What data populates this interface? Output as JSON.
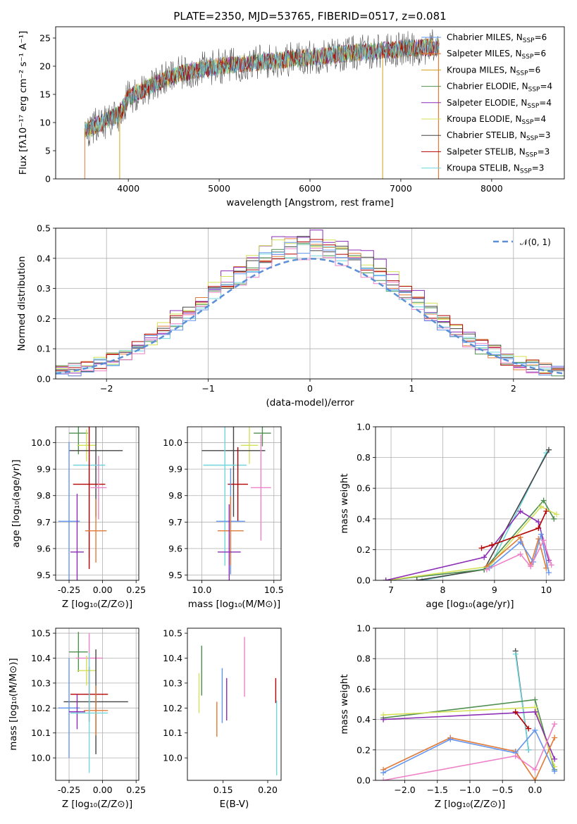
{
  "chart_data": [
    {
      "id": "spectrum",
      "type": "line",
      "title": "PLATE=2350, MJD=53765, FIBERID=0517, z=0.081",
      "xlabel": "wavelength [Angstrom, rest frame]",
      "ylabel": "Flux [fλ10⁻¹⁷ erg cm⁻² s⁻¹ A⁻¹]",
      "xlim": [
        3200,
        8800
      ],
      "ylim": [
        0,
        27
      ],
      "xticks": [
        "4000",
        "5000",
        "6000",
        "7000",
        "8000"
      ],
      "yticks": [
        "0",
        "5",
        "10",
        "15",
        "20",
        "25"
      ],
      "x_start": 3520,
      "x_end": 7420,
      "continuum": {
        "x": [
          3520,
          3900,
          4000,
          4300,
          4600,
          5000,
          5500,
          6000,
          6500,
          7000,
          7420
        ],
        "y": [
          8.5,
          11.5,
          14.5,
          17.0,
          18.8,
          20.0,
          20.8,
          21.6,
          22.4,
          23.0,
          23.5
        ]
      },
      "legend": [
        {
          "label": "Chabrier MILES, N",
          "sub": "SSP",
          "suffix": "=6",
          "color": "#6495ed"
        },
        {
          "label": "Salpeter MILES, N",
          "sub": "SSP",
          "suffix": "=6",
          "color": "#e07b39"
        },
        {
          "label": "Kroupa MILES, N",
          "sub": "SSP",
          "suffix": "=6",
          "color": "#d4a017"
        },
        {
          "label": "Chabrier ELODIE, N",
          "sub": "SSP",
          "suffix": "=4",
          "color": "#4f8f4f"
        },
        {
          "label": "Salpeter ELODIE, N",
          "sub": "SSP",
          "suffix": "=4",
          "color": "#8b2db5"
        },
        {
          "label": "Kroupa ELODIE, N",
          "sub": "SSP",
          "suffix": "=4",
          "color": "#d4e157"
        },
        {
          "label": "Chabrier STELIB, N",
          "sub": "SSP",
          "suffix": "=3",
          "color": "#444444"
        },
        {
          "label": "Salpeter STELIB, N",
          "sub": "SSP",
          "suffix": "=3",
          "color": "#b30000"
        },
        {
          "label": "Kroupa STELIB, N",
          "sub": "SSP",
          "suffix": "=3",
          "color": "#70d6dc"
        }
      ]
    },
    {
      "id": "residuals",
      "type": "histogram",
      "xlabel": "(data-model)/error",
      "ylabel": "Normed distribution",
      "xlim": [
        -2.5,
        2.5
      ],
      "ylim": [
        0,
        0.5
      ],
      "xticks": [
        "−2",
        "−1",
        "0",
        "1",
        "2"
      ],
      "yticks": [
        "0.0",
        "0.1",
        "0.2",
        "0.3",
        "0.4",
        "0.5"
      ],
      "gaussian_label": "𝒩(0, 1)",
      "bins": [
        -2.5,
        2.5,
        40
      ],
      "base_colors": [
        "#4f8f4f",
        "#e07b39",
        "#8b2db5",
        "#d4e157",
        "#444444",
        "#b30000",
        "#70d6dc",
        "#ee82c8",
        "#6495ed"
      ],
      "series_peaks": [
        0.43,
        0.45,
        0.48,
        0.46,
        0.45,
        0.44,
        0.43,
        0.42,
        0.44
      ]
    },
    {
      "id": "z-age",
      "type": "errorbar",
      "xlabel": "Z [log₁₀(Z/Z⊙)]",
      "ylabel": "age  [log₁₀(age/yr)]",
      "xlim": [
        -0.35,
        0.27
      ],
      "ylim": [
        9.48,
        10.06
      ],
      "xticks": [
        -0.25,
        0.0,
        0.25
      ],
      "yticks": [
        9.5,
        9.6,
        9.7,
        9.8,
        9.9,
        10.0
      ],
      "points": [
        {
          "x": -0.18,
          "y": 10.036,
          "xerr": 0.07,
          "yerr": 0.08,
          "color": "#4f8f4f"
        },
        {
          "x": -0.12,
          "y": 9.99,
          "xerr": 0.07,
          "yerr": 0.06,
          "color": "#d4e157"
        },
        {
          "x": -0.05,
          "y": 9.97,
          "xerr": 0.2,
          "yerr": 0.25,
          "color": "#444444"
        },
        {
          "x": -0.1,
          "y": 9.915,
          "xerr": 0.12,
          "yerr": 0.35,
          "color": "#70d6dc"
        },
        {
          "x": -0.1,
          "y": 9.843,
          "xerr": 0.12,
          "yerr": 0.32,
          "color": "#b30000"
        },
        {
          "x": -0.03,
          "y": 9.83,
          "xerr": 0.06,
          "yerr": 0.12,
          "color": "#ee82c8"
        },
        {
          "x": -0.25,
          "y": 9.703,
          "xerr": 0.08,
          "yerr": 0.3,
          "color": "#6495ed"
        },
        {
          "x": -0.05,
          "y": 9.667,
          "xerr": 0.08,
          "yerr": 0.12,
          "color": "#e07b39"
        },
        {
          "x": -0.19,
          "y": 9.587,
          "xerr": 0.05,
          "yerr": 0.22,
          "color": "#8b2db5"
        }
      ]
    },
    {
      "id": "mass-age",
      "type": "errorbar",
      "xlabel": "mass [log₁₀(M/M⊙)]",
      "ylabel": "",
      "xlim": [
        9.9,
        10.55
      ],
      "ylim": [
        9.48,
        10.06
      ],
      "xticks": [
        10.0,
        10.5
      ],
      "yticks": [
        9.5,
        9.6,
        9.7,
        9.8,
        9.9,
        10.0
      ],
      "points": [
        {
          "x": 10.42,
          "y": 10.036,
          "xerr": 0.06,
          "yerr": 0.05,
          "color": "#4f8f4f"
        },
        {
          "x": 10.33,
          "y": 9.99,
          "xerr": 0.06,
          "yerr": 0.07,
          "color": "#d4e157"
        },
        {
          "x": 10.22,
          "y": 9.97,
          "xerr": 0.22,
          "yerr": 0.25,
          "color": "#444444"
        },
        {
          "x": 10.16,
          "y": 9.915,
          "xerr": 0.15,
          "yerr": 0.38,
          "color": "#70d6dc"
        },
        {
          "x": 10.25,
          "y": 9.843,
          "xerr": 0.07,
          "yerr": 0.14,
          "color": "#b30000"
        },
        {
          "x": 10.41,
          "y": 9.83,
          "xerr": 0.07,
          "yerr": 0.2,
          "color": "#ee82c8"
        },
        {
          "x": 10.2,
          "y": 9.703,
          "xerr": 0.1,
          "yerr": 0.2,
          "color": "#6495ed"
        },
        {
          "x": 10.2,
          "y": 9.667,
          "xerr": 0.09,
          "yerr": 0.13,
          "color": "#e07b39"
        },
        {
          "x": 10.19,
          "y": 9.587,
          "xerr": 0.08,
          "yerr": 0.18,
          "color": "#8b2db5"
        }
      ]
    },
    {
      "id": "age-weight",
      "type": "line",
      "xlabel": "age  [log₁₀(age/yr)]",
      "ylabel": "mass weight",
      "xlim": [
        6.7,
        10.35
      ],
      "ylim": [
        0,
        1.0
      ],
      "xticks": [
        7,
        8,
        9,
        10
      ],
      "yticks": [
        0.0,
        0.2,
        0.4,
        0.6,
        0.8,
        1.0
      ],
      "series": [
        {
          "color": "#70d6dc",
          "x": [
            7.6,
            8.9,
            10.0
          ],
          "y": [
            0.0,
            0.08,
            0.83
          ]
        },
        {
          "color": "#444444",
          "x": [
            7.5,
            8.8,
            10.05
          ],
          "y": [
            0.0,
            0.07,
            0.85
          ]
        },
        {
          "color": "#4f8f4f",
          "x": [
            6.9,
            8.8,
            9.95,
            10.15
          ],
          "y": [
            0.0,
            0.07,
            0.52,
            0.4
          ]
        },
        {
          "color": "#d4e157",
          "x": [
            6.9,
            8.9,
            9.9,
            10.2
          ],
          "y": [
            0.0,
            0.09,
            0.48,
            0.43
          ]
        },
        {
          "color": "#8b2db5",
          "x": [
            6.9,
            8.8,
            9.5,
            9.85,
            10.05
          ],
          "y": [
            0.0,
            0.15,
            0.45,
            0.38,
            0.13
          ]
        },
        {
          "color": "#b30000",
          "x": [
            8.75,
            8.95,
            9.85,
            10.0
          ],
          "y": [
            0.21,
            0.23,
            0.34,
            0.45
          ]
        },
        {
          "color": "#e07b39",
          "x": [
            8.85,
            9.5,
            9.7,
            9.85,
            10.0
          ],
          "y": [
            0.09,
            0.28,
            0.1,
            0.27,
            0.08
          ]
        },
        {
          "color": "#6495ed",
          "x": [
            8.9,
            9.5,
            9.75,
            9.9,
            10.05
          ],
          "y": [
            0.08,
            0.25,
            0.12,
            0.3,
            0.05
          ]
        },
        {
          "color": "#ee82c8",
          "x": [
            8.85,
            9.5,
            9.7,
            9.95,
            10.1
          ],
          "y": [
            0.07,
            0.17,
            0.09,
            0.26,
            0.1
          ]
        }
      ]
    },
    {
      "id": "z-mass",
      "type": "errorbar",
      "xlabel": "Z [log₁₀(Z/Z⊙)]",
      "ylabel": "mass [log₁₀(M/M⊙)]",
      "xlim": [
        -0.35,
        0.27
      ],
      "ylim": [
        9.91,
        10.52
      ],
      "xticks": [
        -0.25,
        0.0,
        0.25
      ],
      "yticks": [
        10.0,
        10.1,
        10.2,
        10.3,
        10.4,
        10.5
      ],
      "points": [
        {
          "x": -0.18,
          "y": 10.425,
          "xerr": 0.07,
          "yerr": 0.08,
          "color": "#4f8f4f"
        },
        {
          "x": -0.1,
          "y": 10.4,
          "xerr": 0.1,
          "yerr": 0.1,
          "color": "#ee82c8"
        },
        {
          "x": -0.12,
          "y": 10.35,
          "xerr": 0.07,
          "yerr": 0.06,
          "color": "#d4e157"
        },
        {
          "x": -0.1,
          "y": 10.255,
          "xerr": 0.14,
          "yerr": 0.11,
          "color": "#b30000"
        },
        {
          "x": -0.05,
          "y": 10.225,
          "xerr": 0.24,
          "yerr": 0.21,
          "color": "#444444"
        },
        {
          "x": -0.25,
          "y": 10.2,
          "xerr": 0.08,
          "yerr": 0.2,
          "color": "#6495ed"
        },
        {
          "x": -0.05,
          "y": 10.19,
          "xerr": 0.09,
          "yerr": 0.1,
          "color": "#e07b39"
        },
        {
          "x": -0.19,
          "y": 10.185,
          "xerr": 0.06,
          "yerr": 0.07,
          "color": "#8b2db5"
        },
        {
          "x": -0.1,
          "y": 10.18,
          "xerr": 0.14,
          "yerr": 0.24,
          "color": "#70d6dc"
        }
      ]
    },
    {
      "id": "ebv-mass",
      "type": "errorbar",
      "xlabel": "E(B-V)",
      "ylabel": "",
      "xlim": [
        0.11,
        0.215
      ],
      "ylim": [
        9.91,
        10.52
      ],
      "xticks": [
        0.15,
        0.2
      ],
      "yticks": [
        10.0,
        10.1,
        10.2,
        10.3,
        10.4,
        10.5
      ],
      "points": [
        {
          "x": 0.126,
          "y": 10.35,
          "xerr": 0,
          "yerr": 0.1,
          "color": "#4f8f4f"
        },
        {
          "x": 0.123,
          "y": 10.26,
          "xerr": 0,
          "yerr": 0.08,
          "color": "#d4e157"
        },
        {
          "x": 0.143,
          "y": 10.155,
          "xerr": 0,
          "yerr": 0.07,
          "color": "#e07b39"
        },
        {
          "x": 0.149,
          "y": 10.25,
          "xerr": 0,
          "yerr": 0.11,
          "color": "#6495ed"
        },
        {
          "x": 0.154,
          "y": 10.235,
          "xerr": 0,
          "yerr": 0.085,
          "color": "#8b2db5"
        },
        {
          "x": 0.174,
          "y": 10.365,
          "xerr": 0,
          "yerr": 0.12,
          "color": "#ee82c8"
        },
        {
          "x": 0.209,
          "y": 10.27,
          "xerr": 0,
          "yerr": 0.05,
          "color": "#b30000"
        },
        {
          "x": 0.21,
          "y": 10.08,
          "xerr": 0,
          "yerr": 0.15,
          "color": "#70d6dc"
        }
      ]
    },
    {
      "id": "z-weight",
      "type": "line",
      "xlabel": "Z [log₁₀(Z/Z⊙)]",
      "ylabel": "mass weight",
      "xlim": [
        -2.45,
        0.45
      ],
      "ylim": [
        0,
        1.0
      ],
      "xticks": [
        -2.0,
        -1.5,
        -1.0,
        -0.5,
        0.0
      ],
      "yticks": [
        0.0,
        0.2,
        0.4,
        0.6,
        0.8,
        1.0
      ],
      "series": [
        {
          "color": "#444444",
          "x": [
            -0.3,
            -0.1
          ],
          "y": [
            0.85,
            0.2
          ]
        },
        {
          "color": "#70d6dc",
          "x": [
            -0.3,
            -0.1
          ],
          "y": [
            0.83,
            0.2
          ]
        },
        {
          "color": "#4f8f4f",
          "x": [
            -2.33,
            0.0,
            0.3
          ],
          "y": [
            0.41,
            0.53,
            0.07
          ]
        },
        {
          "color": "#d4e157",
          "x": [
            -2.33,
            0.0,
            0.3
          ],
          "y": [
            0.43,
            0.48,
            0.09
          ]
        },
        {
          "color": "#8b2db5",
          "x": [
            -2.33,
            0.0,
            0.3
          ],
          "y": [
            0.4,
            0.45,
            0.14
          ]
        },
        {
          "color": "#b30000",
          "x": [
            -0.3,
            -0.1
          ],
          "y": [
            0.45,
            0.34
          ]
        },
        {
          "color": "#e07b39",
          "x": [
            -2.33,
            -1.3,
            -0.3,
            0.0,
            0.3
          ],
          "y": [
            0.07,
            0.28,
            0.19,
            0.0,
            0.28
          ]
        },
        {
          "color": "#6495ed",
          "x": [
            -2.33,
            -1.3,
            -0.3,
            0.0,
            0.3
          ],
          "y": [
            0.05,
            0.27,
            0.18,
            0.33,
            0.06
          ]
        },
        {
          "color": "#ee82c8",
          "x": [
            -2.33,
            -0.3,
            0.0,
            0.3
          ],
          "y": [
            0.0,
            0.16,
            0.07,
            0.37
          ]
        }
      ]
    }
  ]
}
